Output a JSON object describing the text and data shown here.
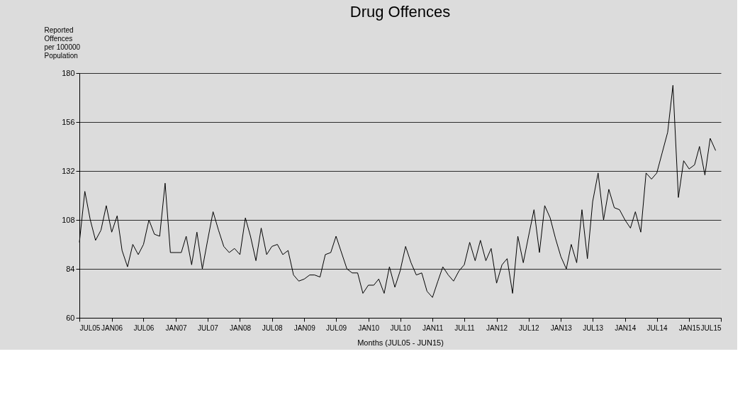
{
  "chart_data": {
    "type": "line",
    "title": "Drug Offences",
    "xlabel": "Months (JUL05 - JUN15)",
    "ylabel": "Reported Offences per 100000 Population",
    "x": [
      "2005-07",
      "2005-08",
      "2005-09",
      "2005-10",
      "2005-11",
      "2005-12",
      "2006-01",
      "2006-02",
      "2006-03",
      "2006-04",
      "2006-05",
      "2006-06",
      "2006-07",
      "2006-08",
      "2006-09",
      "2006-10",
      "2006-11",
      "2006-12",
      "2007-01",
      "2007-02",
      "2007-03",
      "2007-04",
      "2007-05",
      "2007-06",
      "2007-07",
      "2007-08",
      "2007-09",
      "2007-10",
      "2007-11",
      "2007-12",
      "2008-01",
      "2008-02",
      "2008-03",
      "2008-04",
      "2008-05",
      "2008-06",
      "2008-07",
      "2008-08",
      "2008-09",
      "2008-10",
      "2008-11",
      "2008-12",
      "2009-01",
      "2009-02",
      "2009-03",
      "2009-04",
      "2009-05",
      "2009-06",
      "2009-07",
      "2009-08",
      "2009-09",
      "2009-10",
      "2009-11",
      "2009-12",
      "2010-01",
      "2010-02",
      "2010-03",
      "2010-04",
      "2010-05",
      "2010-06",
      "2010-07",
      "2010-08",
      "2010-09",
      "2010-10",
      "2010-11",
      "2010-12",
      "2011-01",
      "2011-02",
      "2011-03",
      "2011-04",
      "2011-05",
      "2011-06",
      "2011-07",
      "2011-08",
      "2011-09",
      "2011-10",
      "2011-11",
      "2011-12",
      "2012-01",
      "2012-02",
      "2012-03",
      "2012-04",
      "2012-05",
      "2012-06",
      "2012-07",
      "2012-08",
      "2012-09",
      "2012-10",
      "2012-11",
      "2012-12",
      "2013-01",
      "2013-02",
      "2013-03",
      "2013-04",
      "2013-05",
      "2013-06",
      "2013-07",
      "2013-08",
      "2013-09",
      "2013-10",
      "2013-11",
      "2013-12",
      "2014-01",
      "2014-02",
      "2014-03",
      "2014-04",
      "2014-05",
      "2014-06",
      "2014-07",
      "2014-08",
      "2014-09",
      "2014-10",
      "2014-11",
      "2014-12",
      "2015-01",
      "2015-02",
      "2015-03",
      "2015-04",
      "2015-05",
      "2015-06"
    ],
    "series": [
      {
        "color": "#000000",
        "values": [
          97,
          122,
          108,
          98,
          103,
          115,
          102,
          110,
          93,
          85,
          96,
          91,
          96,
          108,
          101,
          100,
          126,
          92,
          92,
          92,
          100,
          86,
          102,
          84,
          98,
          112,
          103,
          95,
          92,
          94,
          91,
          109,
          100,
          88,
          104,
          91,
          95,
          96,
          91,
          93,
          81,
          78,
          79,
          81,
          81,
          80,
          91,
          92,
          100,
          92,
          84,
          82,
          82,
          72,
          76,
          76,
          79,
          72,
          85,
          75,
          83,
          95,
          87,
          81,
          82,
          73,
          70,
          78,
          85,
          81,
          78,
          83,
          86,
          97,
          88,
          98,
          88,
          94,
          77,
          86,
          89,
          72,
          100,
          87,
          100,
          113,
          92,
          115,
          109,
          99,
          90,
          84,
          96,
          87,
          113,
          89,
          117,
          131,
          108,
          123,
          114,
          113,
          108,
          104,
          112,
          102,
          131,
          128,
          131,
          141,
          151,
          174,
          119,
          137,
          133,
          135,
          144,
          130,
          148,
          142
        ]
      }
    ],
    "xlim": [
      "2005-07",
      "2015-07"
    ],
    "xticks": [
      {
        "value": "2005-07",
        "label": "JUL05"
      },
      {
        "value": "2006-01",
        "label": "JAN06"
      },
      {
        "value": "2006-07",
        "label": "JUL06"
      },
      {
        "value": "2007-01",
        "label": "JAN07"
      },
      {
        "value": "2007-07",
        "label": "JUL07"
      },
      {
        "value": "2008-01",
        "label": "JAN08"
      },
      {
        "value": "2008-07",
        "label": "JUL08"
      },
      {
        "value": "2009-01",
        "label": "JAN09"
      },
      {
        "value": "2009-07",
        "label": "JUL09"
      },
      {
        "value": "2010-01",
        "label": "JAN10"
      },
      {
        "value": "2010-07",
        "label": "JUL10"
      },
      {
        "value": "2011-01",
        "label": "JAN11"
      },
      {
        "value": "2011-07",
        "label": "JUL11"
      },
      {
        "value": "2012-01",
        "label": "JAN12"
      },
      {
        "value": "2012-07",
        "label": "JUL12"
      },
      {
        "value": "2013-01",
        "label": "JAN13"
      },
      {
        "value": "2013-07",
        "label": "JUL13"
      },
      {
        "value": "2014-01",
        "label": "JAN14"
      },
      {
        "value": "2014-07",
        "label": "JUL14"
      },
      {
        "value": "2015-01",
        "label": "JAN15"
      },
      {
        "value": "2015-07",
        "label": "JUL15"
      }
    ],
    "ylim": [
      60,
      180
    ],
    "yticks": [
      60,
      84,
      108,
      132,
      156,
      180
    ],
    "grid": "y",
    "legend": false,
    "marker": "none",
    "line_style": "solid"
  }
}
